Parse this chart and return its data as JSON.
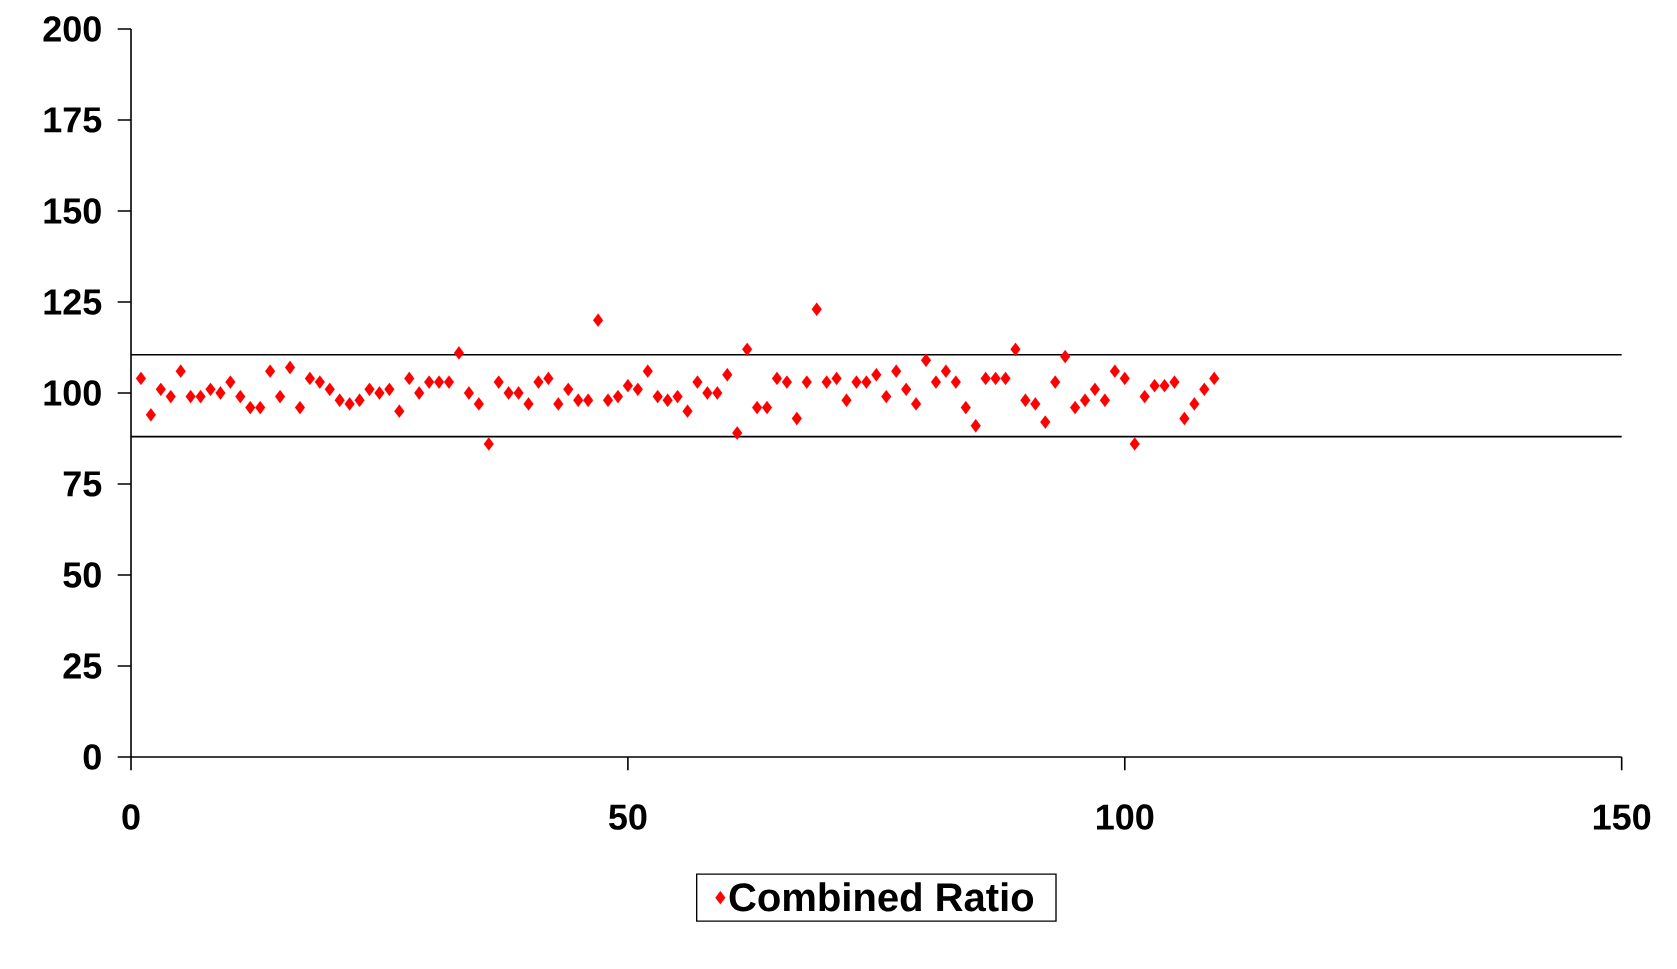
{
  "chart_data": {
    "type": "scatter",
    "marker": "diamond",
    "legend": "bottom",
    "grid": false,
    "xlim": [
      0,
      150
    ],
    "ylim": [
      0,
      200
    ],
    "xticks": [
      0,
      50,
      100,
      150
    ],
    "yticks": [
      0,
      25,
      50,
      75,
      100,
      125,
      150,
      175,
      200
    ],
    "ref_lines": [
      {
        "axis": "y",
        "value": 110.5,
        "color": "#000000"
      },
      {
        "axis": "y",
        "value": 88,
        "color": "#000000"
      }
    ],
    "series": [
      {
        "name": "Combined Ratio",
        "color": "#ff0000",
        "x": [
          1,
          2,
          3,
          4,
          5,
          6,
          7,
          8,
          9,
          10,
          11,
          12,
          13,
          14,
          15,
          16,
          17,
          18,
          19,
          20,
          21,
          22,
          23,
          24,
          25,
          26,
          27,
          28,
          29,
          30,
          31,
          32,
          33,
          34,
          35,
          36,
          37,
          38,
          39,
          40,
          41,
          42,
          43,
          44,
          45,
          46,
          47,
          48,
          49,
          50,
          51,
          52,
          53,
          54,
          55,
          56,
          57,
          58,
          59,
          60,
          61,
          62,
          63,
          64,
          65,
          66,
          67,
          68,
          69,
          70,
          71,
          72,
          73,
          74,
          75,
          76,
          77,
          78,
          79,
          80,
          81,
          82,
          83,
          84,
          85,
          86,
          87,
          88,
          89,
          90,
          91,
          92,
          93,
          94,
          95,
          96,
          97,
          98,
          99,
          100,
          101,
          102,
          103,
          104,
          105,
          106,
          107,
          108,
          109
        ],
        "values": [
          104,
          94,
          101,
          99,
          106,
          99,
          99,
          101,
          100,
          103,
          99,
          96,
          96,
          106,
          99,
          107,
          96,
          104,
          103,
          101,
          98,
          97,
          98,
          101,
          100,
          101,
          95,
          104,
          100,
          103,
          103,
          103,
          111,
          100,
          97,
          86,
          103,
          100,
          100,
          97,
          103,
          104,
          97,
          101,
          98,
          98,
          120,
          98,
          99,
          102,
          101,
          106,
          99,
          98,
          99,
          95,
          103,
          100,
          100,
          105,
          89,
          112,
          96,
          96,
          104,
          103,
          93,
          103,
          123,
          103,
          104,
          98,
          103,
          103,
          105,
          99,
          106,
          101,
          97,
          109,
          103,
          106,
          103,
          96,
          91,
          104,
          104,
          104,
          112,
          98,
          97,
          92,
          103,
          110,
          96,
          98,
          101,
          98,
          106,
          104,
          86,
          99,
          102,
          102,
          103,
          93,
          97,
          101,
          104
        ]
      }
    ]
  }
}
